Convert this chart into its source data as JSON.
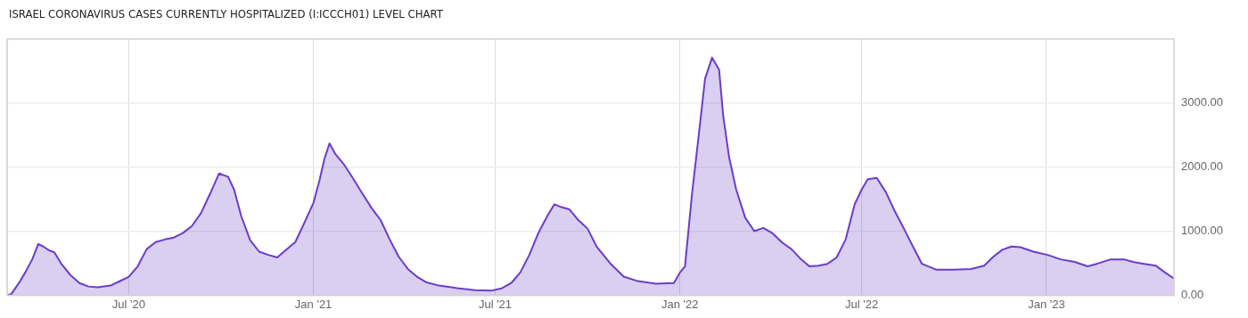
{
  "chart_data": {
    "type": "area",
    "title": "ISRAEL CORONAVIRUS CASES CURRENTLY HOSPITALIZED (I:ICCCH01) LEVEL CHART",
    "x": [
      "2020-03-02",
      "2020-03-06",
      "2020-03-15",
      "2020-03-20",
      "2020-03-27",
      "2020-04-02",
      "2020-04-07",
      "2020-04-13",
      "2020-04-18",
      "2020-04-25",
      "2020-05-04",
      "2020-05-13",
      "2020-05-22",
      "2020-05-31",
      "2020-06-13",
      "2020-06-22",
      "2020-07-01",
      "2020-07-10",
      "2020-07-19",
      "2020-07-28",
      "2020-08-06",
      "2020-08-15",
      "2020-08-24",
      "2020-09-02",
      "2020-09-11",
      "2020-09-20",
      "2020-09-29",
      "2020-10-08",
      "2020-10-14",
      "2020-10-21",
      "2020-10-30",
      "2020-11-08",
      "2020-11-17",
      "2020-11-26",
      "2020-12-05",
      "2020-12-14",
      "2020-12-23",
      "2021-01-01",
      "2021-01-07",
      "2021-01-12",
      "2021-01-17",
      "2021-01-23",
      "2021-02-01",
      "2021-02-10",
      "2021-02-19",
      "2021-02-28",
      "2021-03-09",
      "2021-03-18",
      "2021-03-27",
      "2021-04-05",
      "2021-04-14",
      "2021-04-23",
      "2021-05-06",
      "2021-05-24",
      "2021-06-11",
      "2021-06-27",
      "2021-07-08",
      "2021-07-17",
      "2021-07-26",
      "2021-08-04",
      "2021-08-13",
      "2021-08-22",
      "2021-08-29",
      "2021-09-04",
      "2021-09-13",
      "2021-09-22",
      "2021-10-01",
      "2021-10-10",
      "2021-10-24",
      "2021-11-06",
      "2021-11-20",
      "2021-12-08",
      "2021-12-26",
      "2022-01-01",
      "2022-01-06",
      "2022-01-13",
      "2022-01-20",
      "2022-01-26",
      "2022-02-02",
      "2022-02-09",
      "2022-02-13",
      "2022-02-19",
      "2022-02-26",
      "2022-03-07",
      "2022-03-16",
      "2022-03-25",
      "2022-04-03",
      "2022-04-13",
      "2022-04-22",
      "2022-05-01",
      "2022-05-10",
      "2022-05-19",
      "2022-05-28",
      "2022-06-06",
      "2022-06-15",
      "2022-06-24",
      "2022-07-01",
      "2022-07-07",
      "2022-07-16",
      "2022-07-25",
      "2022-08-03",
      "2022-08-12",
      "2022-08-21",
      "2022-08-30",
      "2022-09-13",
      "2022-09-30",
      "2022-10-18",
      "2022-10-31",
      "2022-11-09",
      "2022-11-18",
      "2022-11-27",
      "2022-12-06",
      "2022-12-19",
      "2023-01-02",
      "2023-01-15",
      "2023-01-29",
      "2023-02-11",
      "2023-02-20",
      "2023-03-06",
      "2023-03-19",
      "2023-03-28",
      "2023-04-08",
      "2023-04-20",
      "2023-04-29",
      "2023-05-08"
    ],
    "series": [
      {
        "color": "#6a3dc8",
        "values": [
          0,
          15,
          220,
          355,
          560,
          800,
          760,
          700,
          670,
          490,
          315,
          190,
          136,
          123,
          150,
          218,
          286,
          450,
          720,
          830,
          870,
          900,
          970,
          1080,
          1280,
          1580,
          1900,
          1850,
          1650,
          1240,
          860,
          680,
          630,
          590,
          710,
          830,
          1130,
          1440,
          1790,
          2130,
          2370,
          2200,
          2030,
          1810,
          1580,
          1360,
          1170,
          870,
          600,
          410,
          290,
          205,
          150,
          110,
          80,
          70,
          110,
          190,
          355,
          630,
          970,
          1240,
          1420,
          1380,
          1340,
          1170,
          1040,
          760,
          490,
          290,
          220,
          180,
          190,
          355,
          450,
          1580,
          2540,
          3380,
          3710,
          3520,
          2810,
          2150,
          1650,
          1210,
          1000,
          1050,
          970,
          820,
          720,
          570,
          450,
          460,
          490,
          590,
          870,
          1420,
          1650,
          1810,
          1830,
          1610,
          1310,
          1040,
          760,
          490,
          400,
          400,
          410,
          460,
          600,
          710,
          760,
          750,
          680,
          630,
          560,
          520,
          450,
          490,
          560,
          560,
          520,
          490,
          460,
          355,
          260
        ]
      }
    ],
    "xlim": [
      "2020-03-02",
      "2023-05-08"
    ],
    "xticks": [
      {
        "value": "2020-07-01",
        "label": "Jul '20"
      },
      {
        "value": "2021-01-01",
        "label": "Jan '21"
      },
      {
        "value": "2021-07-01",
        "label": "Jul '21"
      },
      {
        "value": "2022-01-01",
        "label": "Jan '22"
      },
      {
        "value": "2022-07-01",
        "label": "Jul '22"
      },
      {
        "value": "2023-01-01",
        "label": "Jan '23"
      }
    ],
    "ylim": [
      0,
      4000
    ],
    "yticks": [
      {
        "value": 0,
        "label": "0.00"
      },
      {
        "value": 1000,
        "label": "1000.00"
      },
      {
        "value": 2000,
        "label": "2000.00"
      },
      {
        "value": 3000,
        "label": "3000.00"
      }
    ],
    "grid": true,
    "legend": false
  }
}
